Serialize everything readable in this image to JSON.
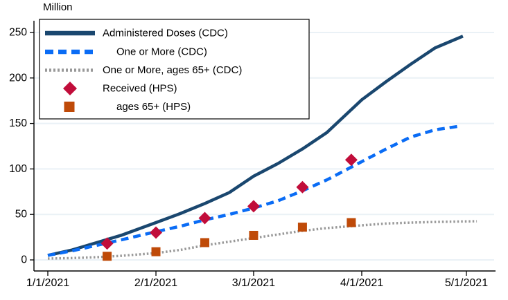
{
  "chart_data": {
    "type": "line",
    "title": "",
    "ylabel": "Million",
    "xlabel": "",
    "ylim": [
      0,
      250
    ],
    "yticks": [
      0,
      50,
      100,
      150,
      200,
      250
    ],
    "xticks": [
      {
        "label": "1/1/2021",
        "day": 0
      },
      {
        "label": "2/1/2021",
        "day": 31
      },
      {
        "label": "3/1/2021",
        "day": 59
      },
      {
        "label": "4/1/2021",
        "day": 90
      },
      {
        "label": "5/1/2021",
        "day": 120
      }
    ],
    "x_unit": "days since 1/1/2021",
    "grid": true,
    "legend_position": "top-left",
    "series": [
      {
        "name": "Administered Doses (CDC)",
        "type": "line",
        "line_style": "solid",
        "color": "#1a476f",
        "points": [
          [
            0,
            5
          ],
          [
            7,
            11
          ],
          [
            14,
            19
          ],
          [
            21,
            27
          ],
          [
            31,
            41
          ],
          [
            38,
            51
          ],
          [
            45,
            62
          ],
          [
            52,
            74
          ],
          [
            59,
            92
          ],
          [
            66,
            106
          ],
          [
            73,
            122
          ],
          [
            80,
            140
          ],
          [
            90,
            176
          ],
          [
            97,
            196
          ],
          [
            104,
            215
          ],
          [
            111,
            233
          ],
          [
            119,
            246
          ]
        ]
      },
      {
        "name": "One or More (CDC)",
        "type": "line",
        "line_style": "dashed",
        "color": "#0a6cf5",
        "points": [
          [
            0,
            5
          ],
          [
            7,
            10
          ],
          [
            14,
            16
          ],
          [
            21,
            22
          ],
          [
            31,
            31
          ],
          [
            38,
            37
          ],
          [
            45,
            44
          ],
          [
            52,
            50
          ],
          [
            59,
            57
          ],
          [
            66,
            65
          ],
          [
            73,
            76
          ],
          [
            80,
            88
          ],
          [
            90,
            108
          ],
          [
            97,
            122
          ],
          [
            104,
            135
          ],
          [
            111,
            143
          ],
          [
            118,
            147
          ]
        ]
      },
      {
        "name": "One or More, ages 65+ (CDC)",
        "type": "line",
        "line_style": "dotted",
        "color": "#999999",
        "points": [
          [
            0,
            1.5
          ],
          [
            7,
            2
          ],
          [
            14,
            3
          ],
          [
            21,
            4.5
          ],
          [
            31,
            7.5
          ],
          [
            38,
            11
          ],
          [
            45,
            16
          ],
          [
            52,
            20
          ],
          [
            59,
            24
          ],
          [
            66,
            28
          ],
          [
            73,
            32
          ],
          [
            80,
            35
          ],
          [
            90,
            38
          ],
          [
            97,
            40
          ],
          [
            104,
            41
          ],
          [
            111,
            41.7
          ],
          [
            118,
            42.2
          ],
          [
            123,
            42.5
          ]
        ]
      },
      {
        "name": "Received (HPS)",
        "type": "scatter",
        "marker": "diamond",
        "color": "#c10d3a",
        "points": [
          [
            17,
            18
          ],
          [
            31,
            30
          ],
          [
            45,
            46
          ],
          [
            59,
            59
          ],
          [
            73,
            80
          ],
          [
            87,
            110
          ]
        ]
      },
      {
        "name": "ages 65+ (HPS)",
        "type": "scatter",
        "marker": "square",
        "color": "#bf4a08",
        "points": [
          [
            17,
            4
          ],
          [
            31,
            9
          ],
          [
            45,
            19
          ],
          [
            59,
            27
          ],
          [
            73,
            36
          ],
          [
            87,
            41
          ]
        ]
      }
    ],
    "legend": {
      "entries": [
        {
          "label": "Administered Doses (CDC)",
          "indent": false,
          "series": 0
        },
        {
          "label": "One or More (CDC)",
          "indent": true,
          "series": 1
        },
        {
          "label": "One or More, ages 65+  (CDC)",
          "indent": false,
          "series": 2
        },
        {
          "label": "Received (HPS)",
          "indent": false,
          "series": 3
        },
        {
          "label": "ages 65+ (HPS)",
          "indent": true,
          "series": 4
        }
      ]
    },
    "colors": {
      "grid": "#eaf1f6",
      "axis": "#000000",
      "background": "#ffffff"
    }
  }
}
